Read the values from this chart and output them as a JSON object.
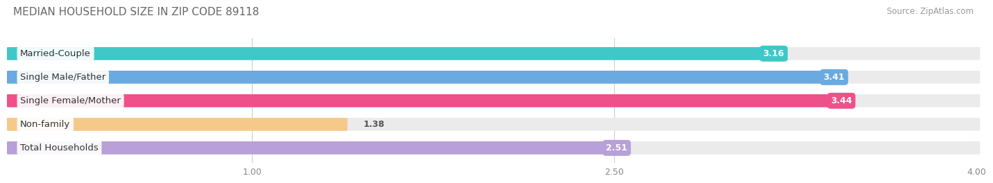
{
  "title": "MEDIAN HOUSEHOLD SIZE IN ZIP CODE 89118",
  "source": "Source: ZipAtlas.com",
  "categories": [
    "Married-Couple",
    "Single Male/Father",
    "Single Female/Mother",
    "Non-family",
    "Total Households"
  ],
  "values": [
    3.16,
    3.41,
    3.44,
    1.38,
    2.51
  ],
  "bar_colors": [
    "#3ec8c8",
    "#6aaae0",
    "#f0508a",
    "#f5c98a",
    "#b8a0d8"
  ],
  "label_text_colors": [
    "#444444",
    "#444444",
    "#444444",
    "#aa8855",
    "#555588"
  ],
  "background_color": "#ffffff",
  "bar_bg_color": "#ebebeb",
  "xlim_data": [
    0,
    4.0
  ],
  "xticks": [
    1.0,
    2.5,
    4.0
  ],
  "xtick_labels": [
    "1.00",
    "2.50",
    "4.00"
  ],
  "title_fontsize": 11,
  "source_fontsize": 8.5,
  "label_fontsize": 9.5,
  "value_fontsize": 9,
  "bar_height": 0.52,
  "fig_width": 14.06,
  "fig_height": 2.69,
  "dpi": 100
}
